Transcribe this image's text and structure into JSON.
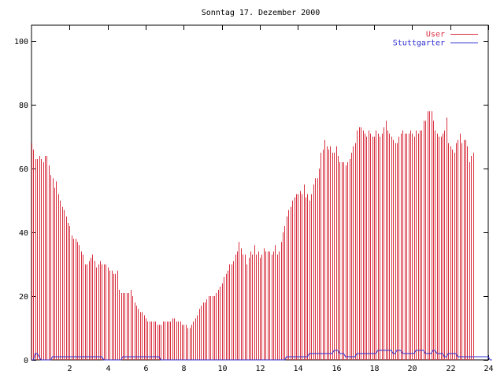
{
  "chart_data": {
    "type": "bar",
    "title": "Sonntag 17. Dezember 2000",
    "xlim": [
      0,
      24
    ],
    "ylim": [
      0,
      105
    ],
    "x_ticks": [
      2,
      4,
      6,
      8,
      10,
      12,
      14,
      16,
      18,
      20,
      22,
      24
    ],
    "y_ticks": [
      0,
      20,
      40,
      60,
      80,
      100
    ],
    "x_tick_labels": [
      "2",
      "4",
      "6",
      "8",
      "10",
      "12",
      "14",
      "16",
      "18",
      "20",
      "22",
      "24"
    ],
    "y_tick_labels": [
      "0",
      "20",
      "40",
      "60",
      "80",
      "100"
    ],
    "grid": false,
    "legend_position": "top-right",
    "x_step": 0.1,
    "series": [
      {
        "name": "User",
        "style": "impulses",
        "color": "#d83040",
        "values": [
          68,
          66,
          63,
          63,
          64,
          63,
          62,
          64,
          64,
          61,
          58,
          57,
          54,
          56,
          52,
          50,
          48,
          47,
          45,
          43,
          42,
          39,
          38,
          38,
          37,
          36,
          34,
          33,
          30,
          30,
          31,
          32,
          33,
          31,
          29,
          30,
          31,
          30,
          30,
          30,
          29,
          28,
          28,
          27,
          27,
          28,
          22,
          21,
          21,
          21,
          21,
          21,
          22,
          20,
          18,
          17,
          16,
          15,
          15,
          14,
          13,
          12,
          12,
          12,
          12,
          12,
          11,
          11,
          11,
          12,
          12,
          12,
          12,
          12,
          13,
          13,
          12,
          12,
          12,
          11,
          11,
          11,
          10,
          10,
          11,
          12,
          13,
          14,
          16,
          17,
          18,
          18,
          19,
          20,
          20,
          20,
          20,
          21,
          22,
          23,
          24,
          26,
          27,
          28,
          30,
          30,
          31,
          33,
          34,
          37,
          35,
          33,
          33,
          30,
          32,
          34,
          33,
          36,
          33,
          34,
          32,
          33,
          35,
          34,
          34,
          34,
          33,
          34,
          36,
          33,
          34,
          37,
          40,
          42,
          45,
          47,
          48,
          50,
          51,
          52,
          52,
          53,
          52,
          55,
          51,
          52,
          50,
          52,
          55,
          57,
          57,
          60,
          65,
          66,
          69,
          67,
          66,
          67,
          65,
          65,
          67,
          64,
          62,
          62,
          62,
          61,
          62,
          63,
          65,
          67,
          68,
          72,
          73,
          73,
          72,
          71,
          70,
          72,
          71,
          70,
          70,
          72,
          71,
          70,
          71,
          73,
          75,
          72,
          71,
          70,
          69,
          68,
          68,
          70,
          71,
          72,
          71,
          71,
          71,
          72,
          71,
          70,
          72,
          71,
          72,
          72,
          75,
          75,
          78,
          78,
          78,
          75,
          72,
          71,
          70,
          70,
          71,
          72,
          76,
          68,
          67,
          66,
          65,
          68,
          69,
          71,
          68,
          69,
          69,
          67,
          62,
          64,
          65
        ],
        "breaks": [
          {
            "x": 15.3,
            "value": 55
          }
        ]
      },
      {
        "name": "Stuttgarter",
        "style": "lines",
        "color": "#3030d0",
        "values": [
          0,
          0,
          2,
          2,
          1,
          0,
          0,
          0,
          0,
          0,
          0,
          1,
          1,
          1,
          1,
          1,
          1,
          1,
          1,
          1,
          1,
          1,
          1,
          1,
          1,
          1,
          1,
          1,
          1,
          1,
          1,
          1,
          1,
          1,
          1,
          1,
          1,
          1,
          0,
          0,
          0,
          0,
          0,
          0,
          0,
          0,
          0,
          0,
          1,
          1,
          1,
          1,
          1,
          1,
          1,
          1,
          1,
          1,
          1,
          1,
          1,
          1,
          1,
          1,
          1,
          1,
          1,
          1,
          0,
          0,
          0,
          0,
          0,
          0,
          0,
          0,
          0,
          0,
          0,
          0,
          0,
          0,
          0,
          0,
          0,
          0,
          0,
          0,
          0,
          0,
          0,
          0,
          0,
          0,
          0,
          0,
          0,
          0,
          0,
          0,
          0,
          0,
          0,
          0,
          0,
          0,
          0,
          0,
          0,
          0,
          0,
          0,
          0,
          0,
          0,
          0,
          0,
          0,
          0,
          0,
          0,
          0,
          0,
          0,
          0,
          0,
          0,
          0,
          0,
          0,
          0,
          0,
          0,
          0,
          1,
          1,
          1,
          1,
          1,
          1,
          1,
          1,
          1,
          1,
          1,
          1,
          2,
          2,
          2,
          2,
          2,
          2,
          2,
          2,
          2,
          2,
          2,
          2,
          2,
          3,
          3,
          3,
          2,
          2,
          2,
          1,
          1,
          1,
          1,
          1,
          1,
          2,
          2,
          2,
          2,
          2,
          2,
          2,
          2,
          2,
          2,
          2,
          3,
          3,
          3,
          3,
          3,
          3,
          3,
          3,
          2,
          2,
          3,
          3,
          3,
          2,
          2,
          2,
          2,
          2,
          2,
          2,
          3,
          3,
          3,
          3,
          3,
          2,
          2,
          2,
          2,
          3,
          3,
          2,
          2,
          2,
          2,
          1,
          1,
          2,
          2,
          2,
          2,
          2,
          1,
          1,
          1,
          1,
          1,
          1,
          1,
          1,
          1,
          1,
          1,
          1,
          1,
          1,
          1,
          1,
          1,
          0,
          0
        ]
      }
    ]
  }
}
